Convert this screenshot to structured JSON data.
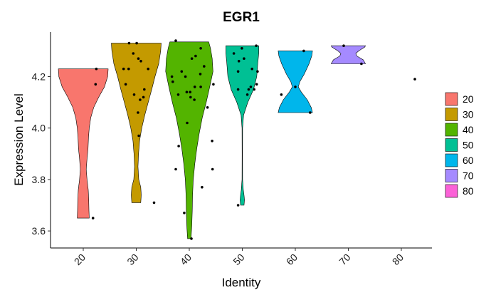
{
  "chart_data": {
    "type": "violin",
    "title": "EGR1",
    "xlabel": "Identity",
    "ylabel": "Expression Level",
    "ylim": [
      3.54,
      4.36
    ],
    "yticks": [
      3.6,
      3.8,
      4.0,
      4.2
    ],
    "ytick_labels": [
      "3.6",
      "3.8",
      "4.0",
      "4.2"
    ],
    "categories": [
      "20",
      "30",
      "40",
      "50",
      "60",
      "70",
      "80"
    ],
    "legend": {
      "position": "right",
      "entries": [
        {
          "label": "20",
          "color": "#F8766D"
        },
        {
          "label": "30",
          "color": "#C49A00"
        },
        {
          "label": "40",
          "color": "#53B400"
        },
        {
          "label": "50",
          "color": "#00C094"
        },
        {
          "label": "60",
          "color": "#00B6EB"
        },
        {
          "label": "70",
          "color": "#A58AFF"
        },
        {
          "label": "80",
          "color": "#FB61D7"
        }
      ]
    },
    "violins": [
      {
        "category": "20",
        "color": "#F8766D",
        "profile": [
          [
            3.65,
            0.24
          ],
          [
            3.68,
            0.23
          ],
          [
            3.72,
            0.22
          ],
          [
            3.76,
            0.2
          ],
          [
            3.8,
            0.15
          ],
          [
            3.84,
            0.12
          ],
          [
            3.88,
            0.15
          ],
          [
            3.92,
            0.19
          ],
          [
            3.96,
            0.21
          ],
          [
            4.0,
            0.24
          ],
          [
            4.04,
            0.3
          ],
          [
            4.08,
            0.42
          ],
          [
            4.12,
            0.62
          ],
          [
            4.16,
            0.85
          ],
          [
            4.2,
            0.98
          ],
          [
            4.23,
            1.0
          ]
        ]
      },
      {
        "category": "30",
        "color": "#C49A00",
        "profile": [
          [
            3.71,
            0.18
          ],
          [
            3.74,
            0.2
          ],
          [
            3.77,
            0.18
          ],
          [
            3.8,
            0.1
          ],
          [
            3.85,
            0.07
          ],
          [
            3.9,
            0.09
          ],
          [
            3.95,
            0.13
          ],
          [
            4.0,
            0.22
          ],
          [
            4.05,
            0.34
          ],
          [
            4.1,
            0.48
          ],
          [
            4.15,
            0.62
          ],
          [
            4.2,
            0.75
          ],
          [
            4.25,
            0.9
          ],
          [
            4.3,
            0.98
          ],
          [
            4.33,
            1.0
          ]
        ]
      },
      {
        "category": "40",
        "color": "#53B400",
        "profile": [
          [
            3.57,
            0.07
          ],
          [
            3.62,
            0.1
          ],
          [
            3.68,
            0.12
          ],
          [
            3.74,
            0.13
          ],
          [
            3.8,
            0.16
          ],
          [
            3.86,
            0.22
          ],
          [
            3.92,
            0.3
          ],
          [
            3.98,
            0.4
          ],
          [
            4.04,
            0.52
          ],
          [
            4.1,
            0.68
          ],
          [
            4.16,
            0.82
          ],
          [
            4.22,
            0.95
          ],
          [
            4.27,
            0.92
          ],
          [
            4.31,
            0.85
          ],
          [
            4.335,
            0.78
          ]
        ]
      },
      {
        "category": "50",
        "color": "#00C094",
        "profile": [
          [
            3.7,
            0.07
          ],
          [
            3.72,
            0.09
          ],
          [
            3.74,
            0.07
          ],
          [
            3.76,
            0.04
          ],
          [
            3.8,
            0.01
          ],
          [
            3.9,
            0.008
          ],
          [
            4.0,
            0.01
          ],
          [
            4.05,
            0.05
          ],
          [
            4.1,
            0.22
          ],
          [
            4.15,
            0.45
          ],
          [
            4.2,
            0.58
          ],
          [
            4.25,
            0.62
          ],
          [
            4.29,
            0.66
          ],
          [
            4.32,
            0.66
          ]
        ]
      },
      {
        "category": "60",
        "color": "#00B6EB",
        "profile": [
          [
            4.06,
            0.69
          ],
          [
            4.08,
            0.64
          ],
          [
            4.11,
            0.48
          ],
          [
            4.14,
            0.24
          ],
          [
            4.16,
            0.12
          ],
          [
            4.18,
            0.18
          ],
          [
            4.21,
            0.36
          ],
          [
            4.25,
            0.55
          ],
          [
            4.28,
            0.66
          ],
          [
            4.3,
            0.69
          ]
        ]
      },
      {
        "category": "70",
        "color": "#A58AFF",
        "profile": [
          [
            4.25,
            0.69
          ],
          [
            4.265,
            0.6
          ],
          [
            4.28,
            0.34
          ],
          [
            4.29,
            0.3
          ],
          [
            4.3,
            0.42
          ],
          [
            4.315,
            0.66
          ],
          [
            4.32,
            0.69
          ]
        ]
      }
    ],
    "points": [
      {
        "category": "20",
        "offsets": [
          0.31,
          0.29,
          0.23
        ],
        "values": [
          4.23,
          4.17,
          3.65
        ]
      },
      {
        "category": "30",
        "offsets": [
          -0.17,
          -0.07,
          0.05,
          -0.3,
          -0.18,
          0.11,
          0.28,
          0.19,
          -0.05,
          0.09,
          0.04,
          0.06,
          0.42,
          -0.25,
          0.01,
          0.17
        ],
        "values": [
          4.33,
          4.29,
          4.27,
          4.23,
          4.23,
          4.26,
          4.23,
          4.15,
          4.13,
          4.11,
          4.06,
          3.97,
          3.71,
          4.17,
          4.33,
          4.12
        ]
      },
      {
        "category": "40",
        "offsets": [
          -0.32,
          0.27,
          -0.41,
          0.06,
          0.15,
          0.26,
          0.35,
          0.57,
          -0.18,
          -0.09,
          0.27,
          0.02,
          0.13,
          -0.06,
          0.03,
          0.12,
          -0.26,
          -0.05,
          0.54,
          0.3,
          -0.32,
          -0.25,
          0.55,
          0.43,
          -0.39,
          -0.12,
          0.05
        ],
        "values": [
          4.34,
          4.31,
          4.2,
          4.27,
          4.28,
          4.21,
          4.24,
          4.17,
          4.22,
          4.2,
          4.16,
          4.14,
          4.16,
          4.14,
          4.12,
          4.11,
          4.13,
          4.02,
          3.95,
          3.77,
          3.84,
          3.93,
          3.84,
          4.08,
          4.18,
          3.67,
          3.57
        ]
      },
      {
        "category": "50",
        "offsets": [
          -0.01,
          0.04,
          0.33,
          -0.2,
          0.34,
          0.23,
          -0.1,
          0.36,
          -0.1,
          0.28,
          0.12,
          0.15,
          -0.08,
          0.2,
          -0.1
        ],
        "values": [
          4.31,
          4.27,
          4.32,
          4.29,
          4.17,
          4.23,
          4.22,
          4.22,
          4.15,
          4.15,
          4.13,
          4.15,
          4.26,
          4.16,
          3.7
        ]
      },
      {
        "category": "60",
        "offsets": [
          0.2,
          0.0,
          0.35,
          -0.33
        ],
        "values": [
          4.3,
          4.16,
          4.06,
          4.13
        ]
      },
      {
        "category": "70",
        "offsets": [
          -0.11,
          0.31
        ],
        "values": [
          4.32,
          4.25
        ]
      },
      {
        "category": "80",
        "offsets": [
          0.32
        ],
        "values": [
          4.19
        ]
      }
    ]
  }
}
